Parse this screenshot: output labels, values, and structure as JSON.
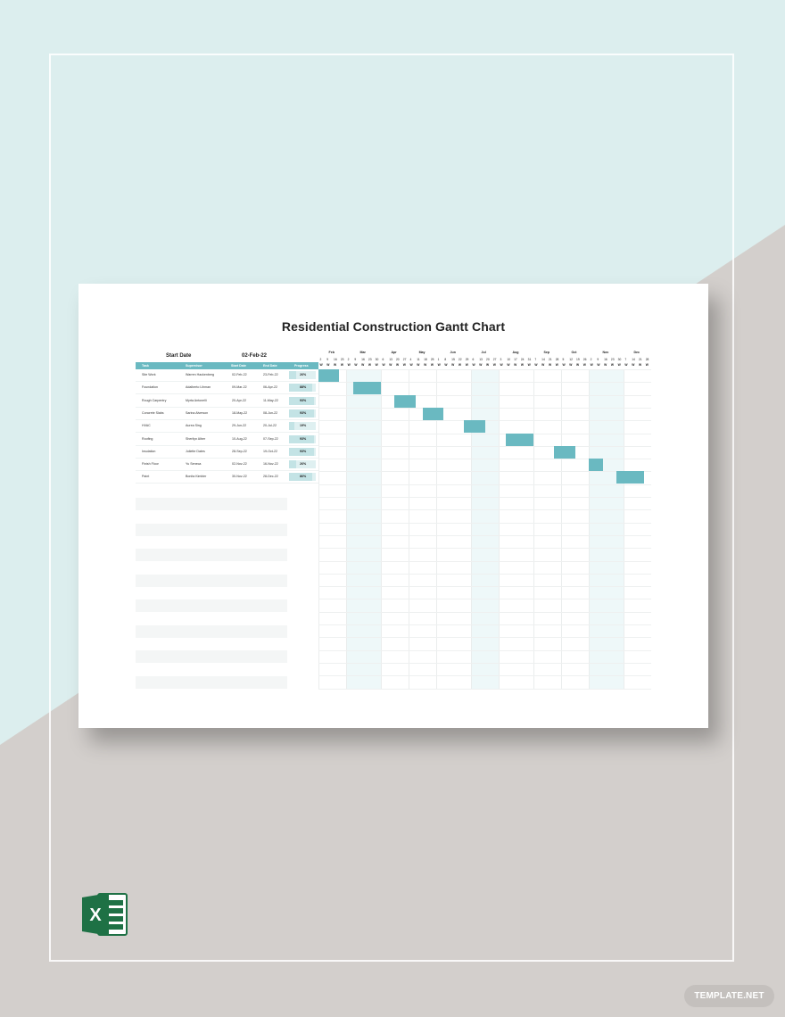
{
  "colors": {
    "bg_top": "#dceeee",
    "bg_bottom": "#d3cfcc",
    "accent": "#6ab9c1",
    "progress_light": "#dff0f1",
    "band": "#eef8f9",
    "excel_green": "#1e7145"
  },
  "sheet": {
    "title": "Residential Construction Gantt Chart",
    "start_label": "Start Date",
    "start_value": "02-Feb-22",
    "columns": [
      "Task",
      "Supervisor",
      "Start Date",
      "End Date",
      "Progress"
    ]
  },
  "timeline": {
    "months": [
      "Feb",
      "Mar",
      "Apr",
      "May",
      "Jun",
      "Jul",
      "Aug",
      "Sep",
      "Oct",
      "Nov",
      "Dec"
    ],
    "week_labels": [
      "2",
      "9",
      "16",
      "23",
      "2",
      "9",
      "16",
      "23",
      "30",
      "6",
      "13",
      "20",
      "27",
      "4",
      "11",
      "18",
      "25",
      "1",
      "8",
      "15",
      "22",
      "29",
      "6",
      "13",
      "20",
      "27",
      "3",
      "10",
      "17",
      "24",
      "31",
      "7",
      "14",
      "21",
      "28",
      "5",
      "12",
      "19",
      "26",
      "2",
      "9",
      "16",
      "23",
      "30",
      "7",
      "14",
      "21",
      "28"
    ],
    "weekday_letter": "W"
  },
  "chart_data": {
    "type": "table",
    "rows": [
      {
        "task": "Site Work",
        "supervisor": "Warren Hackenberg",
        "start": "02-Feb-22",
        "end": "23-Feb-22",
        "progress": "26%",
        "progress_value": 0.26
      },
      {
        "task": "Foundation",
        "supervisor": "Adalberto Lihman",
        "start": "09-Mar-22",
        "end": "06-Apr-22",
        "progress": "88%",
        "progress_value": 0.88
      },
      {
        "task": "Rough Carpentry",
        "supervisor": "Myrta Antonelli",
        "start": "20-Apr-22",
        "end": "11-May-22",
        "progress": "93%",
        "progress_value": 0.93
      },
      {
        "task": "Concrete Slabs",
        "supervisor": "Sarina Alverson",
        "start": "18-May-22",
        "end": "08-Jun-22",
        "progress": "93%",
        "progress_value": 0.93
      },
      {
        "task": "HVAC",
        "supervisor": "Aurea Sing",
        "start": "29-Jun-22",
        "end": "20-Jul-22",
        "progress": "19%",
        "progress_value": 0.19
      },
      {
        "task": "Roofing",
        "supervisor": "Sherilyn Alber",
        "start": "10-Aug-22",
        "end": "07-Sep-22",
        "progress": "93%",
        "progress_value": 0.93
      },
      {
        "task": "Insulation",
        "supervisor": "Juliette Dates",
        "start": "28-Sep-22",
        "end": "19-Oct-22",
        "progress": "93%",
        "progress_value": 0.93
      },
      {
        "task": "Finish Floor",
        "supervisor": "Yu Seneca",
        "start": "02-Nov-22",
        "end": "16-Nov-22",
        "progress": "26%",
        "progress_value": 0.26
      },
      {
        "task": "Paint",
        "supervisor": "Bonita Kimbler",
        "start": "30-Nov-22",
        "end": "28-Dec-22",
        "progress": "86%",
        "progress_value": 0.86
      }
    ]
  },
  "footer": {
    "excel_icon": "microsoft-excel-icon",
    "excel_letter": "X",
    "brand": "TEMPLATE.NET"
  }
}
